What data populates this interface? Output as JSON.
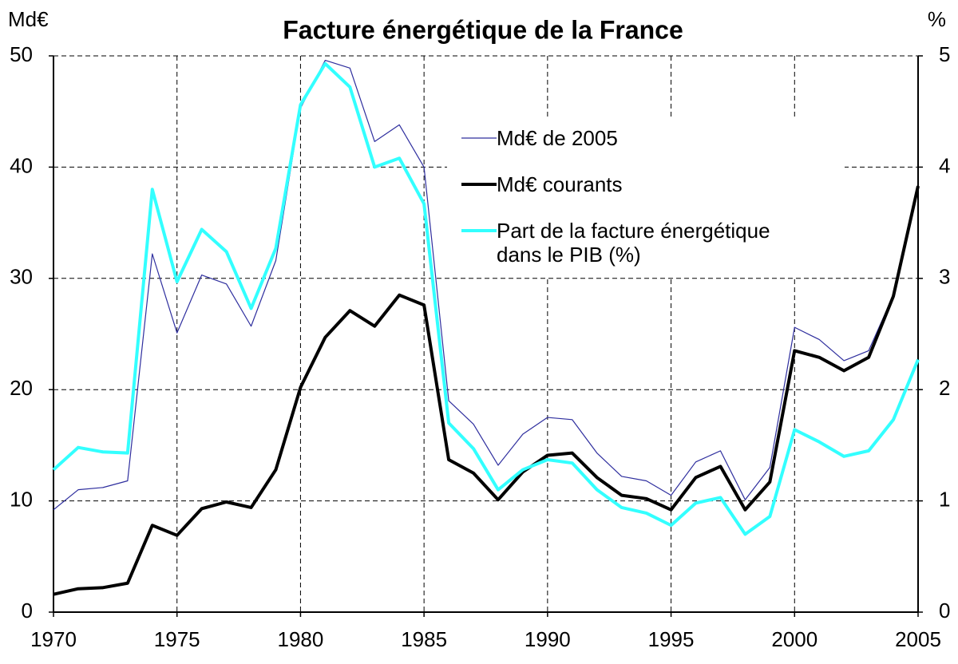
{
  "chart_data": {
    "type": "line",
    "title": "Facture énergétique de la France",
    "ylabel": "Md€",
    "y2label": "%",
    "x": [
      1970,
      1971,
      1972,
      1973,
      1974,
      1975,
      1976,
      1977,
      1978,
      1979,
      1980,
      1981,
      1982,
      1983,
      1984,
      1985,
      1986,
      1987,
      1988,
      1989,
      1990,
      1991,
      1992,
      1993,
      1994,
      1995,
      1996,
      1997,
      1998,
      1999,
      2000,
      2001,
      2002,
      2003,
      2004,
      2005
    ],
    "xlim": [
      1970,
      2005
    ],
    "xticks": [
      1970,
      1975,
      1980,
      1985,
      1990,
      1995,
      2000,
      2005
    ],
    "ylim": [
      0,
      50
    ],
    "yticks": [
      0,
      10,
      20,
      30,
      40,
      50
    ],
    "y2lim": [
      0,
      5
    ],
    "y2ticks": [
      0,
      1,
      2,
      3,
      4,
      5
    ],
    "grid": true,
    "series": [
      {
        "name": "Md€ de 2005",
        "color": "#2e2e9e",
        "values": [
          9.2,
          11.0,
          11.2,
          11.8,
          32.2,
          25.1,
          30.3,
          29.5,
          25.7,
          31.6,
          45.3,
          49.6,
          48.9,
          42.3,
          43.8,
          40.0,
          19.0,
          16.9,
          13.2,
          16.0,
          17.5,
          17.3,
          14.3,
          12.2,
          11.8,
          10.5,
          13.5,
          14.5,
          10.1,
          13.0,
          25.6,
          24.5,
          22.6,
          23.5,
          28.5,
          38.2
        ]
      },
      {
        "name": "Md€ courants",
        "color": "#000000",
        "values": [
          1.6,
          2.1,
          2.2,
          2.6,
          7.8,
          6.9,
          9.3,
          9.9,
          9.4,
          12.8,
          20.2,
          24.7,
          27.1,
          25.7,
          28.5,
          27.6,
          13.7,
          12.5,
          10.1,
          12.6,
          14.1,
          14.3,
          12.1,
          10.5,
          10.2,
          9.2,
          12.1,
          13.1,
          9.2,
          11.7,
          23.5,
          22.9,
          21.7,
          22.9,
          28.4,
          38.3
        ]
      },
      {
        "name": "Part de la facture énergétique dans le PIB (%)",
        "color": "#33ffff",
        "axis": "y2",
        "values": [
          1.28,
          1.48,
          1.44,
          1.43,
          3.8,
          2.97,
          3.44,
          3.24,
          2.73,
          3.27,
          4.56,
          4.93,
          4.72,
          4.0,
          4.08,
          3.67,
          1.7,
          1.47,
          1.1,
          1.28,
          1.37,
          1.34,
          1.1,
          0.94,
          0.89,
          0.78,
          0.98,
          1.03,
          0.7,
          0.86,
          1.64,
          1.53,
          1.4,
          1.45,
          1.73,
          2.27
        ]
      }
    ]
  }
}
